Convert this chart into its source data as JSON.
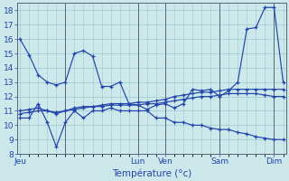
{
  "background_color": "#cce8ea",
  "grid_color": "#99cccc",
  "line_color": "#2244aa",
  "xlabel": "Température (°c)",
  "ylim": [
    8,
    18.5
  ],
  "ytick_vals": [
    8,
    9,
    10,
    11,
    12,
    13,
    14,
    15,
    16,
    17,
    18
  ],
  "xlim": [
    -0.3,
    29.3
  ],
  "vline_positions": [
    5,
    13,
    16,
    22,
    28
  ],
  "xtick_positions": [
    0,
    13,
    16,
    22,
    28
  ],
  "xtick_labels": [
    "Jeu",
    "Lun",
    "Ven",
    "Sam",
    "Dim"
  ],
  "series": [
    [
      16.0,
      14.9,
      13.5,
      13.0,
      12.8,
      13.0,
      15.0,
      15.2,
      14.8,
      12.7,
      12.7,
      13.0,
      11.5,
      11.4,
      11.1,
      11.4,
      11.5,
      11.2,
      11.5,
      12.5,
      12.4,
      12.5,
      12.0,
      12.4,
      13.0,
      16.7,
      16.8,
      18.2,
      18.2,
      13.0
    ],
    [
      10.5,
      10.5,
      11.5,
      10.2,
      8.5,
      10.2,
      11.0,
      10.5,
      11.0,
      11.0,
      11.2,
      11.0,
      11.0,
      11.0,
      11.0,
      10.5,
      10.5,
      10.2,
      10.2,
      10.0,
      10.0,
      9.8,
      9.7,
      9.7,
      9.5,
      9.4,
      9.2,
      9.1,
      9.0,
      9.0
    ],
    [
      11.0,
      11.1,
      11.2,
      11.0,
      10.9,
      11.0,
      11.2,
      11.3,
      11.3,
      11.4,
      11.5,
      11.5,
      11.5,
      11.6,
      11.6,
      11.7,
      11.8,
      12.0,
      12.1,
      12.2,
      12.3,
      12.3,
      12.4,
      12.5,
      12.5,
      12.5,
      12.5,
      12.5,
      12.5,
      12.5
    ],
    [
      10.8,
      10.9,
      11.0,
      11.0,
      10.8,
      11.0,
      11.1,
      11.2,
      11.3,
      11.3,
      11.4,
      11.4,
      11.4,
      11.4,
      11.5,
      11.5,
      11.6,
      11.7,
      11.8,
      11.9,
      12.0,
      12.0,
      12.1,
      12.2,
      12.2,
      12.2,
      12.2,
      12.1,
      12.0,
      12.0
    ]
  ]
}
